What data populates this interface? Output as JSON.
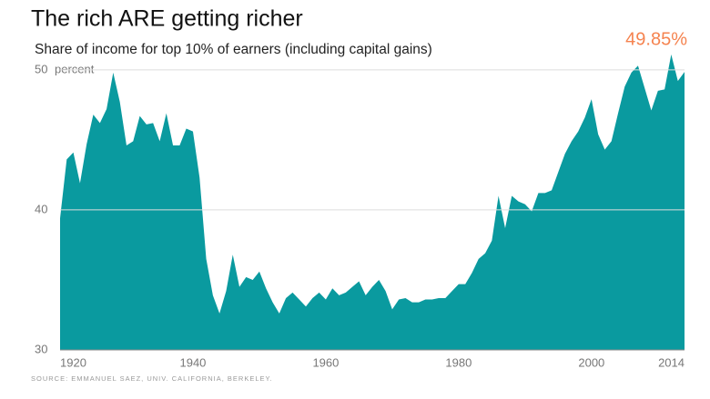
{
  "chart_data": {
    "type": "area",
    "title": "The rich ARE getting richer",
    "subtitle": "Share of income for top 10% of earners (including capital gains)",
    "y_unit_label": "percent",
    "annotation": "49.85%",
    "source": "SOURCE: EMMANUEL SAEZ, UNIV. CALIFORNIA, BERKELEY.",
    "color": "#0a9a9f",
    "x": [
      1920,
      1921,
      1922,
      1923,
      1924,
      1925,
      1926,
      1927,
      1928,
      1929,
      1930,
      1931,
      1932,
      1933,
      1934,
      1935,
      1936,
      1937,
      1938,
      1939,
      1940,
      1941,
      1942,
      1943,
      1944,
      1945,
      1946,
      1947,
      1948,
      1949,
      1950,
      1951,
      1952,
      1953,
      1954,
      1955,
      1956,
      1957,
      1958,
      1959,
      1960,
      1961,
      1962,
      1963,
      1964,
      1965,
      1966,
      1967,
      1968,
      1969,
      1970,
      1971,
      1972,
      1973,
      1974,
      1975,
      1976,
      1977,
      1978,
      1979,
      1980,
      1981,
      1982,
      1983,
      1984,
      1985,
      1986,
      1987,
      1988,
      1989,
      1990,
      1991,
      1992,
      1993,
      1994,
      1995,
      1996,
      1997,
      1998,
      1999,
      2000,
      2001,
      2002,
      2003,
      2004,
      2005,
      2006,
      2007,
      2008,
      2009,
      2010,
      2011,
      2012,
      2013,
      2014
    ],
    "values": [
      39.4,
      43.6,
      44.1,
      41.9,
      44.7,
      46.8,
      46.2,
      47.2,
      49.8,
      47.7,
      44.6,
      44.9,
      46.7,
      46.1,
      46.2,
      44.9,
      46.9,
      44.6,
      44.6,
      45.8,
      45.6,
      42.3,
      36.5,
      33.9,
      32.6,
      34.2,
      36.8,
      34.5,
      35.2,
      35,
      35.6,
      34.4,
      33.4,
      32.6,
      33.7,
      34.1,
      33.6,
      33.1,
      33.7,
      34.1,
      33.6,
      34.4,
      33.9,
      34.1,
      34.5,
      34.9,
      33.9,
      34.5,
      35,
      34.2,
      32.9,
      33.6,
      33.7,
      33.4,
      33.4,
      33.6,
      33.6,
      33.7,
      33.7,
      34.2,
      34.7,
      34.7,
      35.5,
      36.5,
      36.9,
      37.8,
      41,
      38.7,
      41,
      40.6,
      40.4,
      39.9,
      41.2,
      41.2,
      41.4,
      42.7,
      44,
      44.9,
      45.6,
      46.6,
      47.9,
      45.4,
      44.3,
      44.9,
      46.9,
      48.8,
      49.8,
      50.3,
      48.7,
      47.1,
      48.5,
      48.6,
      51.1,
      49.2,
      49.85
    ],
    "xlim": [
      1920,
      2014
    ],
    "xticks": [
      1920,
      1940,
      1960,
      1980,
      2000,
      2014
    ],
    "ylim": [
      30,
      52
    ],
    "yticks": [
      30,
      40,
      50
    ],
    "grid": true
  }
}
